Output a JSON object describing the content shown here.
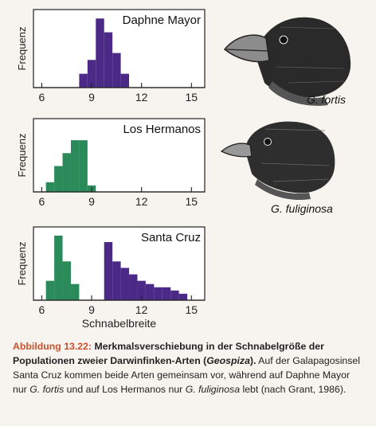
{
  "colors": {
    "fortis": "#4a2a86",
    "fuliginosa": "#2b8a5a"
  },
  "chart_data": [
    {
      "type": "bar",
      "title": "Daphne Mayor",
      "ylabel": "Frequenz",
      "x_ticks": [
        6,
        9,
        12,
        15
      ],
      "xlim": [
        5.5,
        15.8
      ],
      "bin_width": 0.5,
      "series": [
        {
          "species": "fortis",
          "bins": [
            {
              "x": 8.5,
              "y": 2
            },
            {
              "x": 9.0,
              "y": 4
            },
            {
              "x": 9.5,
              "y": 10
            },
            {
              "x": 10.0,
              "y": 8
            },
            {
              "x": 10.5,
              "y": 5
            },
            {
              "x": 11.0,
              "y": 2
            }
          ]
        }
      ]
    },
    {
      "type": "bar",
      "title": "Los Hermanos",
      "ylabel": "Frequenz",
      "x_ticks": [
        6,
        9,
        12,
        15
      ],
      "xlim": [
        5.5,
        15.8
      ],
      "bin_width": 0.5,
      "series": [
        {
          "species": "fuliginosa",
          "bins": [
            {
              "x": 6.5,
              "y": 1.5
            },
            {
              "x": 7.0,
              "y": 4
            },
            {
              "x": 7.5,
              "y": 6
            },
            {
              "x": 8.0,
              "y": 8
            },
            {
              "x": 8.5,
              "y": 8
            },
            {
              "x": 9.0,
              "y": 1
            }
          ]
        }
      ]
    },
    {
      "type": "bar",
      "title": "Santa Cruz",
      "ylabel": "Frequenz",
      "xlabel": "Schnabelbreite",
      "x_ticks": [
        6,
        9,
        12,
        15
      ],
      "xlim": [
        5.5,
        15.8
      ],
      "bin_width": 0.5,
      "series": [
        {
          "species": "fuliginosa",
          "bins": [
            {
              "x": 6.5,
              "y": 3
            },
            {
              "x": 7.0,
              "y": 10
            },
            {
              "x": 7.5,
              "y": 6
            },
            {
              "x": 8.0,
              "y": 2.5
            }
          ]
        },
        {
          "species": "fortis",
          "bins": [
            {
              "x": 10.0,
              "y": 9
            },
            {
              "x": 10.5,
              "y": 6
            },
            {
              "x": 11.0,
              "y": 5
            },
            {
              "x": 11.5,
              "y": 4
            },
            {
              "x": 12.0,
              "y": 3
            },
            {
              "x": 12.5,
              "y": 2.5
            },
            {
              "x": 13.0,
              "y": 2
            },
            {
              "x": 13.5,
              "y": 2
            },
            {
              "x": 14.0,
              "y": 1.5
            },
            {
              "x": 14.5,
              "y": 1
            }
          ]
        }
      ]
    }
  ],
  "species_labels": {
    "fortis": "G. fortis",
    "fuliginosa": "G. fuliginosa"
  },
  "caption": {
    "number": "Abbildung 13.22:",
    "title_part1": "Merkmalsverschiebung in der Schnabelgröße der Populationen zweier Darwinfinken-Arten (",
    "title_genus": "Geospiza",
    "title_part2": ").",
    "text_part1": " Auf der Galapagosinsel Santa Cruz kommen beide Arten gemeinsam vor, während auf Daphne Mayor nur ",
    "species1": "G. fortis",
    "text_part2": " und auf Los Hermanos nur ",
    "species2": "G. fuliginosa",
    "text_part3": " lebt (nach Grant, 1986)."
  }
}
